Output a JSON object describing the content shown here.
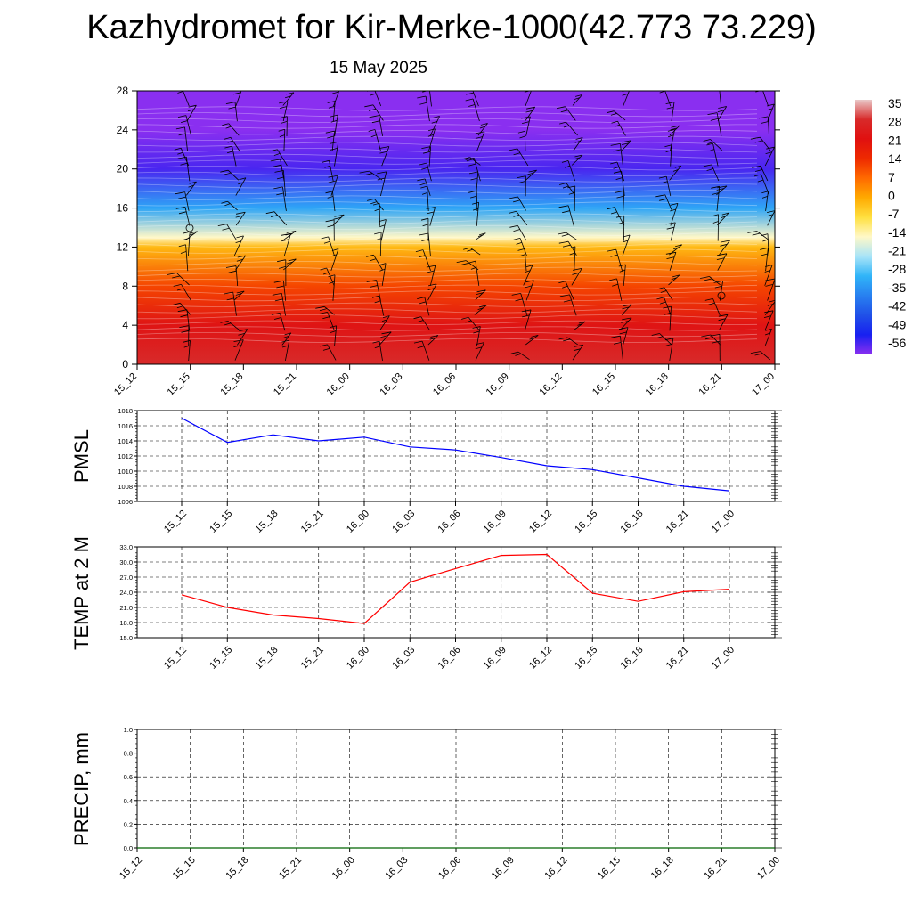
{
  "title": "Kazhydromet for Kir-Merke-1000(42.773 73.229)",
  "subtitle": "15 May 2025",
  "chart_data": [
    {
      "type": "heatmap",
      "ylim": [
        0,
        28
      ],
      "yticks": [
        0,
        4,
        8,
        12,
        16,
        20,
        24,
        28
      ],
      "x_ticks": [
        "15_12",
        "15_15",
        "15_18",
        "15_21",
        "16_00",
        "16_03",
        "16_06",
        "16_09",
        "16_12",
        "16_15",
        "16_18",
        "16_21",
        "17_00"
      ],
      "colorbar_labels": [
        "35",
        "28",
        "21",
        "14",
        "7",
        "0",
        "-7",
        "-14",
        "-21",
        "-28",
        "-35",
        "-42",
        "-49",
        "-56"
      ],
      "color_levels": [
        {
          "value": 35,
          "color": "#e9c8c8"
        },
        {
          "value": 28,
          "color": "#d82a2a"
        },
        {
          "value": 21,
          "color": "#e01010"
        },
        {
          "value": 14,
          "color": "#ee2a00"
        },
        {
          "value": 7,
          "color": "#ff6a00"
        },
        {
          "value": 0,
          "color": "#ffaa00"
        },
        {
          "value": -7,
          "color": "#ffe040"
        },
        {
          "value": -14,
          "color": "#fff8c8"
        },
        {
          "value": -21,
          "color": "#a8e4f8"
        },
        {
          "value": -28,
          "color": "#30b4f8"
        },
        {
          "value": -35,
          "color": "#2880f0"
        },
        {
          "value": -42,
          "color": "#2050e8"
        },
        {
          "value": -49,
          "color": "#1820f0"
        },
        {
          "value": -56,
          "color": "#8a2ff0"
        }
      ],
      "profile_by_height": [
        {
          "y": 0,
          "value": 28
        },
        {
          "y": 4,
          "value": 22
        },
        {
          "y": 8,
          "value": 11
        },
        {
          "y": 12,
          "value": -2
        },
        {
          "y": 13,
          "value": -14
        },
        {
          "y": 16,
          "value": -30
        },
        {
          "y": 20,
          "value": -52
        },
        {
          "y": 24,
          "value": -57
        },
        {
          "y": 28,
          "value": -57
        }
      ],
      "wind_barbs": true
    },
    {
      "type": "line",
      "ylabel": "PMSL",
      "ylim": [
        1006,
        1018
      ],
      "yticks": [
        "1006",
        "1008",
        "1010",
        "1012",
        "1014",
        "1016",
        "1018"
      ],
      "categories": [
        "15_12",
        "15_15",
        "15_18",
        "15_21",
        "16_00",
        "16_03",
        "16_06",
        "16_09",
        "16_12",
        "16_15",
        "16_18",
        "16_21",
        "17_00"
      ],
      "series": [
        {
          "values": [
            1017.0,
            1013.8,
            1014.8,
            1014.0,
            1014.5,
            1013.2,
            1012.8,
            1011.8,
            1010.7,
            1010.2,
            1009.1,
            1008.0,
            1007.4
          ],
          "color": "#0000ff"
        }
      ],
      "grid": true
    },
    {
      "type": "line",
      "ylabel": "TEMP at 2 M",
      "ylim": [
        15.0,
        33.0
      ],
      "yticks": [
        "15.0",
        "18.0",
        "21.0",
        "24.0",
        "27.0",
        "30.0",
        "33.0"
      ],
      "categories": [
        "15_12",
        "15_15",
        "15_18",
        "15_21",
        "16_00",
        "16_03",
        "16_06",
        "16_09",
        "16_12",
        "16_15",
        "16_18",
        "16_21",
        "17_00"
      ],
      "series": [
        {
          "values": [
            23.5,
            21.0,
            19.5,
            18.8,
            17.8,
            26.0,
            28.7,
            31.3,
            31.5,
            23.8,
            22.2,
            24.1,
            24.6
          ],
          "color": "#ff0000"
        }
      ],
      "grid": true
    },
    {
      "type": "line",
      "ylabel": "PRECIP, mm",
      "ylim": [
        0.0,
        1.0
      ],
      "yticks": [
        "0.0",
        "0.2",
        "0.4",
        "0.6",
        "0.8",
        "1.0"
      ],
      "categories": [
        "15_12",
        "15_15",
        "15_18",
        "15_21",
        "16_00",
        "16_03",
        "16_06",
        "16_09",
        "16_12",
        "16_15",
        "16_18",
        "16_21",
        "17_00"
      ],
      "series": [
        {
          "values": [
            0,
            0,
            0,
            0,
            0,
            0,
            0,
            0,
            0,
            0,
            0,
            0,
            0
          ],
          "color": "#006400"
        }
      ],
      "grid": true
    }
  ]
}
